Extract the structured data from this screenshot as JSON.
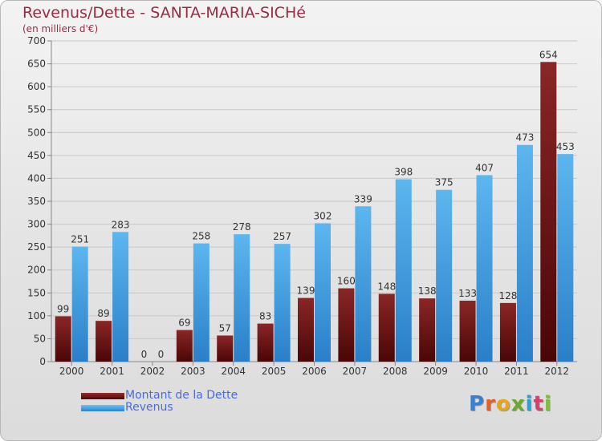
{
  "chart_data": {
    "type": "bar",
    "title": "Revenus/Dette - SANTA-MARIA-SICHé",
    "subtitle": "(en milliers d'€)",
    "categories": [
      "2000",
      "2001",
      "2002",
      "2003",
      "2004",
      "2005",
      "2006",
      "2007",
      "2008",
      "2009",
      "2010",
      "2011",
      "2012"
    ],
    "series": [
      {
        "name": "Montant de la Dette",
        "color": "#7a1c1c",
        "values": [
          99,
          89,
          0,
          69,
          57,
          83,
          139,
          160,
          148,
          138,
          133,
          128,
          654
        ]
      },
      {
        "name": "Revenus",
        "color": "#4ea6e6",
        "values": [
          251,
          283,
          0,
          258,
          278,
          257,
          302,
          339,
          398,
          375,
          407,
          473,
          453
        ]
      }
    ],
    "ylim": [
      0,
      700
    ],
    "yticks": [
      0,
      50,
      100,
      150,
      200,
      250,
      300,
      350,
      400,
      450,
      500,
      550,
      600,
      650,
      700
    ],
    "grid": true,
    "legend_position": "bottom-left"
  },
  "brand": {
    "letters": [
      "P",
      "r",
      "o",
      "x",
      "i",
      "t",
      "i"
    ],
    "colors": [
      "#3a7fd0",
      "#e2612b",
      "#e8a61b",
      "#6aab2c",
      "#2f9fd8",
      "#d43f6e",
      "#7cc034"
    ]
  }
}
